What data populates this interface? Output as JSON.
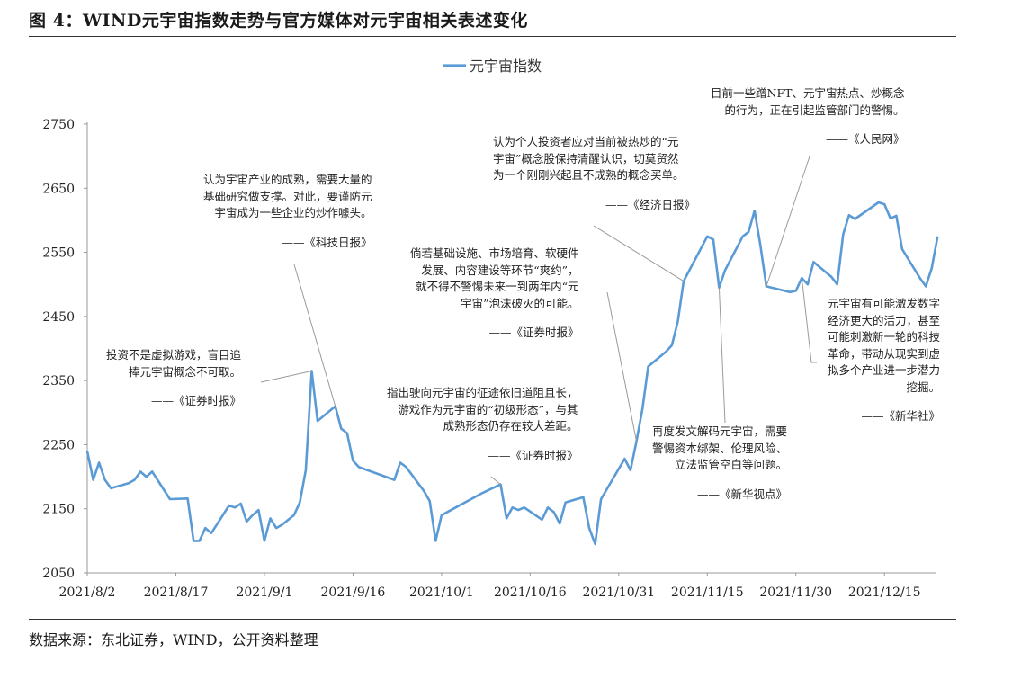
{
  "figure": {
    "title": "图 4：WIND元宇宙指数走势与官方媒体对元宇宙相关表述变化",
    "source": "数据来源：东北证券，WIND，公开资料整理"
  },
  "chart_data": {
    "type": "line",
    "series": [
      {
        "name": "元宇宙指数",
        "color": "#5b9bd5",
        "data": [
          [
            "2021-08-02",
            2240
          ],
          [
            "2021-08-03",
            2195
          ],
          [
            "2021-08-04",
            2222
          ],
          [
            "2021-08-05",
            2195
          ],
          [
            "2021-08-06",
            2182
          ],
          [
            "2021-08-09",
            2190
          ],
          [
            "2021-08-10",
            2195
          ],
          [
            "2021-08-11",
            2208
          ],
          [
            "2021-08-12",
            2200
          ],
          [
            "2021-08-13",
            2208
          ],
          [
            "2021-08-16",
            2165
          ],
          [
            "2021-08-19",
            2166
          ],
          [
            "2021-08-20",
            2100
          ],
          [
            "2021-08-21",
            2100
          ],
          [
            "2021-08-22",
            2120
          ],
          [
            "2021-08-23",
            2112
          ],
          [
            "2021-08-26",
            2155
          ],
          [
            "2021-08-27",
            2152
          ],
          [
            "2021-08-28",
            2158
          ],
          [
            "2021-08-29",
            2130
          ],
          [
            "2021-08-30",
            2140
          ],
          [
            "2021-08-31",
            2148
          ],
          [
            "2021-09-01",
            2100
          ],
          [
            "2021-09-02",
            2135
          ],
          [
            "2021-09-03",
            2120
          ],
          [
            "2021-09-04",
            2125
          ],
          [
            "2021-09-06",
            2140
          ],
          [
            "2021-09-07",
            2160
          ],
          [
            "2021-09-08",
            2210
          ],
          [
            "2021-09-09",
            2365
          ],
          [
            "2021-09-10",
            2287
          ],
          [
            "2021-09-13",
            2310
          ],
          [
            "2021-09-14",
            2275
          ],
          [
            "2021-09-15",
            2268
          ],
          [
            "2021-09-16",
            2225
          ],
          [
            "2021-09-17",
            2215
          ],
          [
            "2021-09-23",
            2195
          ],
          [
            "2021-09-24",
            2222
          ],
          [
            "2021-09-25",
            2215
          ],
          [
            "2021-09-28",
            2178
          ],
          [
            "2021-09-29",
            2162
          ],
          [
            "2021-09-30",
            2100
          ],
          [
            "2021-10-01",
            2140
          ],
          [
            "2021-10-08",
            2175
          ],
          [
            "2021-10-11",
            2188
          ],
          [
            "2021-10-12",
            2135
          ],
          [
            "2021-10-13",
            2152
          ],
          [
            "2021-10-14",
            2148
          ],
          [
            "2021-10-15",
            2152
          ],
          [
            "2021-10-18",
            2133
          ],
          [
            "2021-10-19",
            2152
          ],
          [
            "2021-10-20",
            2145
          ],
          [
            "2021-10-21",
            2127
          ],
          [
            "2021-10-22",
            2160
          ],
          [
            "2021-10-25",
            2168
          ],
          [
            "2021-10-26",
            2120
          ],
          [
            "2021-10-27",
            2095
          ],
          [
            "2021-10-28",
            2165
          ],
          [
            "2021-11-01",
            2228
          ],
          [
            "2021-11-02",
            2210
          ],
          [
            "2021-11-03",
            2255
          ],
          [
            "2021-11-04",
            2305
          ],
          [
            "2021-11-05",
            2372
          ],
          [
            "2021-11-08",
            2395
          ],
          [
            "2021-11-09",
            2405
          ],
          [
            "2021-11-10",
            2442
          ],
          [
            "2021-11-11",
            2505
          ],
          [
            "2021-11-15",
            2575
          ],
          [
            "2021-11-16",
            2570
          ],
          [
            "2021-11-17",
            2495
          ],
          [
            "2021-11-18",
            2522
          ],
          [
            "2021-11-21",
            2575
          ],
          [
            "2021-11-22",
            2582
          ],
          [
            "2021-11-23",
            2615
          ],
          [
            "2021-11-24",
            2560
          ],
          [
            "2021-11-25",
            2497
          ],
          [
            "2021-11-29",
            2488
          ],
          [
            "2021-11-30",
            2490
          ],
          [
            "2021-12-01",
            2510
          ],
          [
            "2021-12-02",
            2500
          ],
          [
            "2021-12-03",
            2535
          ],
          [
            "2021-12-06",
            2512
          ],
          [
            "2021-12-07",
            2500
          ],
          [
            "2021-12-08",
            2578
          ],
          [
            "2021-12-09",
            2608
          ],
          [
            "2021-12-10",
            2602
          ],
          [
            "2021-12-14",
            2628
          ],
          [
            "2021-12-15",
            2625
          ],
          [
            "2021-12-16",
            2603
          ],
          [
            "2021-12-17",
            2607
          ],
          [
            "2021-12-18",
            2555
          ],
          [
            "2021-12-21",
            2510
          ],
          [
            "2021-12-22",
            2497
          ],
          [
            "2021-12-23",
            2525
          ],
          [
            "2021-12-24",
            2575
          ]
        ]
      }
    ],
    "x_ticks": [
      "2021/8/2",
      "2021/8/17",
      "2021/9/1",
      "2021/9/16",
      "2021/10/1",
      "2021/10/16",
      "2021/10/31",
      "2021/11/15",
      "2021/11/30",
      "2021/12/15"
    ],
    "x_range": [
      "2021-08-02",
      "2021-12-27"
    ],
    "y_ticks": [
      2050,
      2150,
      2250,
      2350,
      2450,
      2550,
      2650,
      2750
    ],
    "ylim": [
      2050,
      2750
    ],
    "grid": false,
    "legend": "top-center",
    "annotations": [
      {
        "lines": [
          "投资不是虚拟游戏，盲目追",
          "捧元宇宙概念不可取。"
        ],
        "source": "——《证券时报》",
        "point": "2021-09-09",
        "align": "right"
      },
      {
        "lines": [
          "认为宇宙产业的成熟，需要大量的",
          "基础研究做支撑。对此，要谨防元",
          "宇宙成为一些企业的炒作噱头。"
        ],
        "source": "——《科技日报》",
        "point": "2021-09-13",
        "align": "right"
      },
      {
        "lines": [
          "倘若基础设施、市场培育、软硬件",
          "发展、内容建设等环节“爽约”，",
          "就不得不警惕未来一到两年内“元",
          "宇宙”泡沫破灭的可能。"
        ],
        "source": "——《证券时报》",
        "point": "2021-11-03",
        "align": "right"
      },
      {
        "lines": [
          "指出驶向元宇宙的征途依旧道阻且长，",
          "游戏作为元宇宙的“初级形态”，与其",
          "成熟形态仍存在较大差距。"
        ],
        "source": "——《证券时报》",
        "point": "2021-10-11",
        "align": "right"
      },
      {
        "lines": [
          "认为个人投资者应对当前被热炒的“元",
          "宇宙”概念股保持清醒认识，切莫贸然",
          "为一个刚刚兴起且不成熟的概念买单。"
        ],
        "source": "——《经济日报》",
        "point": "2021-11-11",
        "align": "left"
      },
      {
        "lines": [
          "目前一些蹭NFT、元宇宙热点、炒概念",
          "的行为，正在引起监管部门的警惕。"
        ],
        "source": "——《人民网》",
        "point": "2021-11-25",
        "align": "right"
      },
      {
        "lines": [
          "元宇宙有可能激发数字",
          "经济更大的活力，甚至",
          "可能刺激新一轮的科技",
          "革命，带动从现实到虚",
          "拟多个产业进一步潜力",
          "挖掘。"
        ],
        "source": "——《新华社》",
        "point": "2021-12-01",
        "align": "right"
      },
      {
        "lines": [
          "再度发文解码元宇宙，需要",
          "警惕资本绑架、伦理风险、",
          "立法监管空白等问题。"
        ],
        "source": "——《新华视点》",
        "point": "2021-11-17",
        "align": "right"
      }
    ]
  }
}
